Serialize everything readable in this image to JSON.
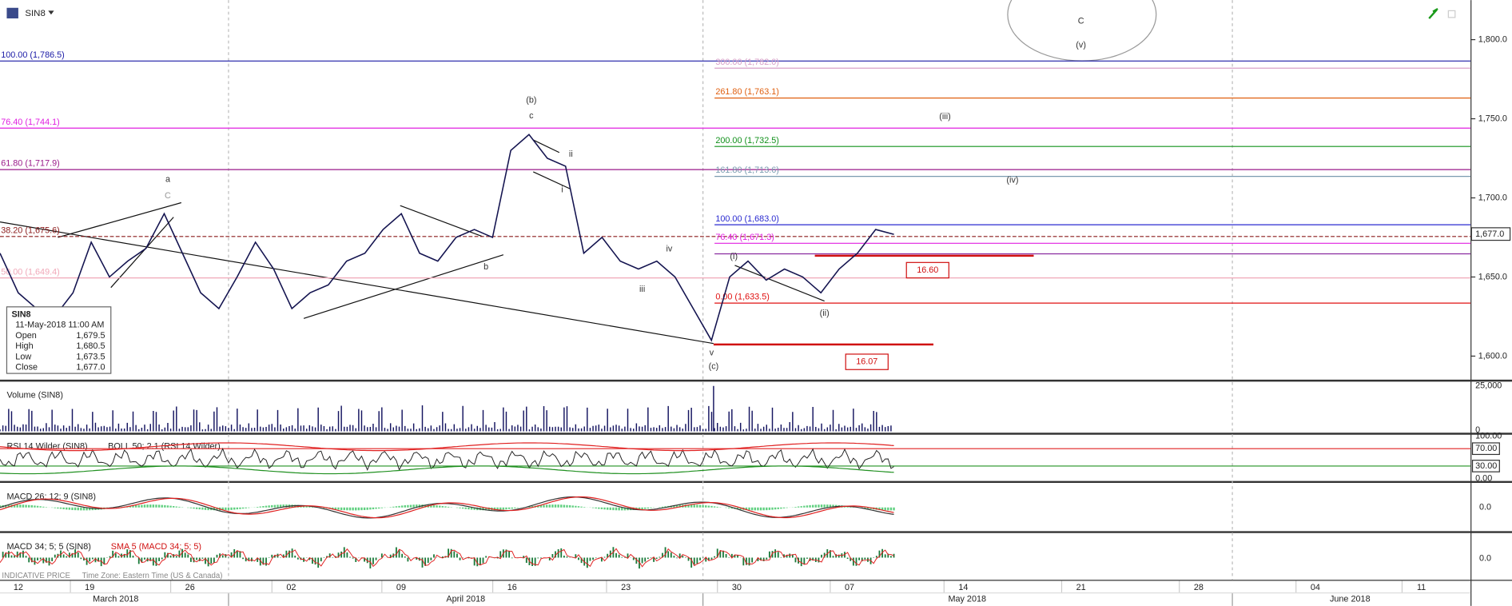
{
  "toolbar": {
    "symbol": "SIN8"
  },
  "price_axis": {
    "ylim": [
      1585.4,
      1825
    ],
    "ticks": [
      {
        "value": 1800,
        "label": "1,800.0"
      },
      {
        "value": 1750,
        "label": "1,750.0"
      },
      {
        "value": 1700,
        "label": "1,700.0"
      },
      {
        "value": 1650,
        "label": "1,650.0"
      },
      {
        "value": 1600,
        "label": "1,600.0"
      }
    ]
  },
  "fib_levels": [
    {
      "label": "100.00 (1,786.5)",
      "value": 1786.5,
      "color": "#1a1aa6",
      "side": "left"
    },
    {
      "label": "76.40 (1,744.1)",
      "value": 1744.1,
      "color": "#e020e0",
      "side": "left"
    },
    {
      "label": "61.80 (1,717.9)",
      "value": 1717.9,
      "color": "#9a1a8a",
      "side": "left"
    },
    {
      "label": "38.20 (1,675.6)",
      "value": 1675.6,
      "color": "#8a1a1a",
      "side": "left"
    },
    {
      "label": "50.00 (1,649.4)",
      "value": 1649.4,
      "color": "#f0a8b8",
      "side": "left"
    },
    {
      "label": "300.00 (1,782.0)",
      "value": 1782.0,
      "color": "#d8a0c8",
      "side": "right"
    },
    {
      "label": "261.80 (1,763.1)",
      "value": 1763.1,
      "color": "#e06010",
      "side": "right"
    },
    {
      "label": "200.00 (1,732.5)",
      "value": 1732.5,
      "color": "#10901a",
      "side": "right"
    },
    {
      "label": "161.80 (1,713.6)",
      "value": 1713.6,
      "color": "#7a9ab0",
      "side": "right"
    },
    {
      "label": "100.00 (1,683.0)",
      "value": 1683.0,
      "color": "#2a2ad0",
      "side": "right"
    },
    {
      "label": "76.40 (1,671.3)",
      "value": 1671.3,
      "color": "#e020e0",
      "side": "right"
    },
    {
      "label": "0.00 (1,633.5)",
      "value": 1633.5,
      "color": "#e01010",
      "side": "right"
    }
  ],
  "boxes": [
    "16.60",
    "16.07"
  ],
  "wave_labels": [
    "a",
    "C",
    "(b)",
    "c",
    "ii",
    "i",
    "iv",
    "iii",
    "b",
    "v",
    "(c)",
    "(i)",
    "(ii)",
    "(iii)",
    "(iv)",
    "C",
    "(v)"
  ],
  "ohlc": {
    "symbol": "SIN8",
    "datetime": "11-May-2018 11:00 AM",
    "rows": [
      [
        "Open",
        "1,679.5"
      ],
      [
        "High",
        "1,680.5"
      ],
      [
        "Low",
        "1,673.5"
      ],
      [
        "Close",
        "1,677.0"
      ]
    ]
  },
  "last_price": "1,677.0",
  "price_trace": [
    1665,
    1640,
    1630,
    1625,
    1640,
    1672,
    1650,
    1660,
    1668,
    1690,
    1665,
    1640,
    1630,
    1650,
    1672,
    1655,
    1630,
    1640,
    1645,
    1660,
    1665,
    1680,
    1690,
    1665,
    1660,
    1675,
    1680,
    1675,
    1730,
    1740,
    1725,
    1720,
    1665,
    1675,
    1660,
    1655,
    1660,
    1650,
    1630,
    1610,
    1650,
    1660,
    1648,
    1655,
    1650,
    1640,
    1655,
    1665,
    1680,
    1677
  ],
  "panels": {
    "volume": {
      "title": "Volume (SIN8)",
      "ticks": [
        "25,000",
        "0"
      ]
    },
    "rsi": {
      "title": "RSI 14 Wilder (SIN8)",
      "overlay": "BOLL 50; 2.1 (RSI 14 Wilder)",
      "ticks": [
        "100.00",
        "70.00",
        "30.00",
        "0.00"
      ]
    },
    "macd": {
      "title": "MACD 26; 12; 9 (SIN8)",
      "ticks": [
        "0.0"
      ]
    },
    "macd2": {
      "title": "MACD 34; 5; 5 (SIN8)",
      "overlay": "SMA 5 (MACD 34; 5; 5)",
      "ticks": [
        "0.0"
      ]
    }
  },
  "footer_note": "INDICATIVE PRICE",
  "timezone": "Time Zone: Eastern Time (US & Canada)",
  "x_axis": {
    "days": [
      "12",
      "19",
      "26",
      "02",
      "09",
      "16",
      "23",
      "30",
      "07",
      "14",
      "21",
      "28",
      "04",
      "11"
    ],
    "months": [
      "March 2018",
      "April 2018",
      "May 2018",
      "June 2018"
    ]
  }
}
